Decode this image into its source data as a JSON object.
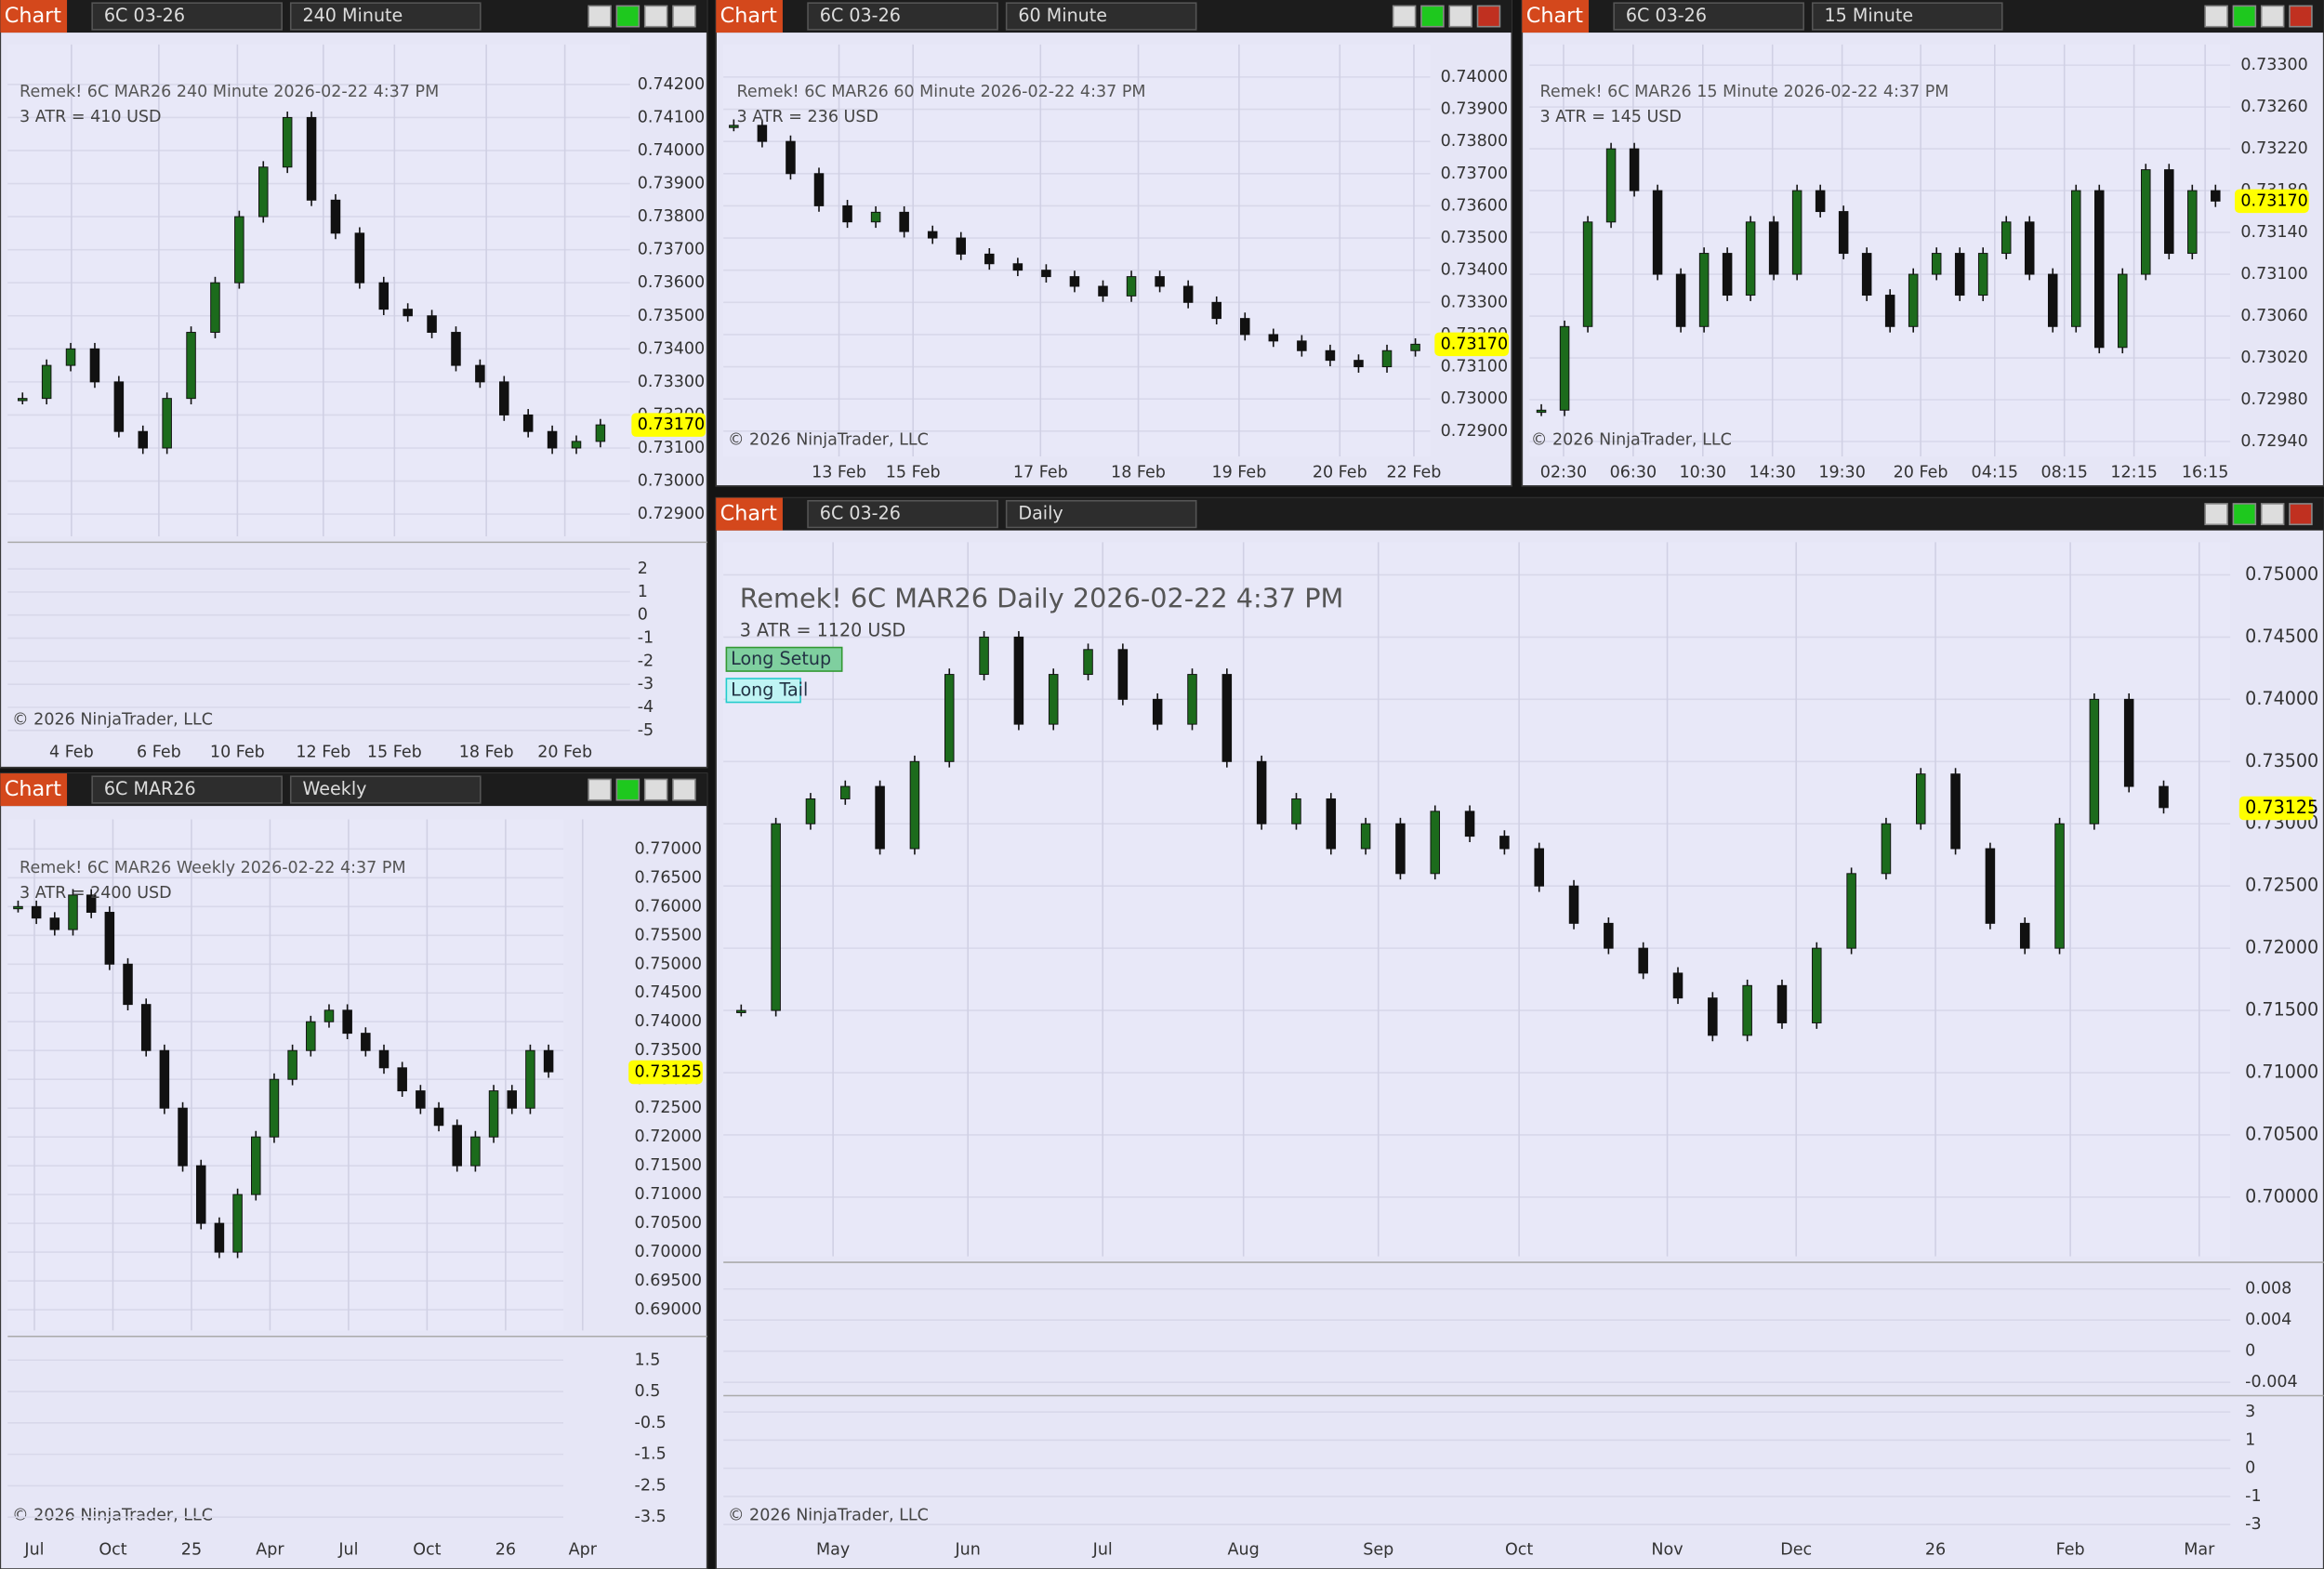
{
  "panels": [
    {
      "header": {
        "app": "Chart",
        "instrument": "6C 03-26",
        "interval": "240 Minute"
      },
      "caption": "Remek!  6C MAR26  240 Minute  2026-02-22 4:37 PM",
      "atr": "3 ATR = 410 USD",
      "copyright": "© 2026 NinjaTrader, LLC",
      "price_ticks": [
        "0.74200",
        "0.74100",
        "0.74000",
        "0.73900",
        "0.73800",
        "0.73700",
        "0.73600",
        "0.73500",
        "0.73400",
        "0.73300",
        "0.73200",
        "0.73100",
        "0.73000",
        "0.72900"
      ],
      "price_marker": "0.73170",
      "indicator_panes": [
        {
          "ticks": [
            "2",
            "1",
            "0",
            "-1",
            "-2",
            "-3",
            "-4",
            "-5"
          ]
        }
      ],
      "dates": [
        "4 Feb",
        "6 Feb",
        "10 Feb",
        "12 Feb",
        "15 Feb",
        "18 Feb",
        "20 Feb"
      ],
      "closes": [
        0.7325,
        0.7335,
        0.734,
        0.733,
        0.7315,
        0.731,
        0.7325,
        0.7345,
        0.736,
        0.738,
        0.7395,
        0.741,
        0.7385,
        0.7375,
        0.736,
        0.7352,
        0.735,
        0.7345,
        0.7335,
        0.733,
        0.732,
        0.7315,
        0.731,
        0.7312,
        0.7317
      ]
    },
    {
      "header": {
        "app": "Chart",
        "instrument": "6C 03-26",
        "interval": "60 Minute"
      },
      "caption": "Remek!  6C MAR26  60 Minute  2026-02-22 4:37 PM",
      "atr": "3 ATR = 236 USD",
      "copyright": "© 2026 NinjaTrader, LLC",
      "price_ticks": [
        "0.74000",
        "0.73900",
        "0.73800",
        "0.73700",
        "0.73600",
        "0.73500",
        "0.73400",
        "0.73300",
        "0.73200",
        "0.73100",
        "0.73000",
        "0.72900"
      ],
      "price_marker": "0.73170",
      "indicator_panes": [],
      "dates": [
        "13 Feb",
        "15 Feb",
        "17 Feb",
        "18 Feb",
        "19 Feb",
        "20 Feb",
        "22 Feb"
      ],
      "closes": [
        0.7385,
        0.738,
        0.737,
        0.736,
        0.7355,
        0.7358,
        0.7352,
        0.735,
        0.7345,
        0.7342,
        0.734,
        0.7338,
        0.7335,
        0.7332,
        0.7338,
        0.7335,
        0.733,
        0.7325,
        0.732,
        0.7318,
        0.7315,
        0.7312,
        0.731,
        0.7315,
        0.7317
      ]
    },
    {
      "header": {
        "app": "Chart",
        "instrument": "6C 03-26",
        "interval": "15 Minute"
      },
      "caption": "Remek!  6C MAR26  15 Minute  2026-02-22 4:37 PM",
      "atr": "3 ATR = 145 USD",
      "copyright": "© 2026 NinjaTrader, LLC",
      "price_ticks": [
        "0.73300",
        "0.73260",
        "0.73220",
        "0.73180",
        "0.73140",
        "0.73100",
        "0.73060",
        "0.73020",
        "0.72980",
        "0.72940"
      ],
      "price_marker": "0.73170",
      "indicator_panes": [],
      "dates": [
        "02:30",
        "06:30",
        "10:30",
        "14:30",
        "19:30",
        "20 Feb",
        "04:15",
        "08:15",
        "12:15",
        "16:15"
      ],
      "closes": [
        0.7297,
        0.7305,
        0.7315,
        0.7322,
        0.7318,
        0.731,
        0.7305,
        0.7312,
        0.7308,
        0.7315,
        0.731,
        0.7318,
        0.7316,
        0.7312,
        0.7308,
        0.7305,
        0.731,
        0.7312,
        0.7308,
        0.7312,
        0.7315,
        0.731,
        0.7305,
        0.7318,
        0.7303,
        0.731,
        0.732,
        0.7312,
        0.7318,
        0.7317
      ]
    },
    {
      "header": {
        "app": "Chart",
        "instrument": "6C MAR26",
        "interval": "Weekly"
      },
      "caption": "Remek!  6C MAR26  Weekly  2026-02-22 4:37 PM",
      "atr": "3 ATR = 2400 USD",
      "copyright": "© 2026 NinjaTrader, LLC",
      "price_ticks": [
        "0.77000",
        "0.76500",
        "0.76000",
        "0.75500",
        "0.75000",
        "0.74500",
        "0.74000",
        "0.73500",
        "0.73000",
        "0.72500",
        "0.72000",
        "0.71500",
        "0.71000",
        "0.70500",
        "0.70000",
        "0.69500",
        "0.69000"
      ],
      "price_marker": "0.73125",
      "indicator_panes": [
        {
          "ticks": [
            "1.5",
            "0.5",
            "-0.5",
            "-1.5",
            "-2.5",
            "-3.5"
          ]
        }
      ],
      "dates": [
        "Jul",
        "Oct",
        "25",
        "Apr",
        "Jul",
        "Oct",
        "26",
        "Apr"
      ],
      "closes": [
        0.76,
        0.758,
        0.756,
        0.762,
        0.759,
        0.75,
        0.743,
        0.735,
        0.725,
        0.715,
        0.705,
        0.7,
        0.71,
        0.72,
        0.73,
        0.735,
        0.74,
        0.742,
        0.738,
        0.735,
        0.732,
        0.728,
        0.725,
        0.722,
        0.715,
        0.72,
        0.728,
        0.725,
        0.735,
        0.7313
      ]
    },
    {
      "header": {
        "app": "Chart",
        "instrument": "6C 03-26",
        "interval": "Daily"
      },
      "caption": "Remek!  6C MAR26  Daily  2026-02-22 4:37 PM",
      "atr": "3 ATR = 1120 USD",
      "copyright": "© 2026 NinjaTrader, LLC",
      "labels": [
        "Long Setup",
        "Long Tail"
      ],
      "price_ticks": [
        "0.75000",
        "0.74500",
        "0.74000",
        "0.73500",
        "0.73000",
        "0.72500",
        "0.72000",
        "0.71500",
        "0.71000",
        "0.70500",
        "0.70000"
      ],
      "price_marker": "0.73125",
      "indicator_panes": [
        {
          "ticks": [
            "0.008",
            "0.004",
            "0",
            "-0.004"
          ]
        },
        {
          "ticks": [
            "3",
            "1",
            "0",
            "-1",
            "-3"
          ]
        }
      ],
      "dates": [
        "May",
        "Jun",
        "Jul",
        "Aug",
        "Sep",
        "Oct",
        "Nov",
        "Dec",
        "26",
        "Feb",
        "Mar"
      ],
      "closes": [
        0.715,
        0.73,
        0.732,
        0.733,
        0.728,
        0.735,
        0.742,
        0.745,
        0.738,
        0.742,
        0.744,
        0.74,
        0.738,
        0.742,
        0.735,
        0.73,
        0.732,
        0.728,
        0.73,
        0.726,
        0.731,
        0.729,
        0.728,
        0.725,
        0.722,
        0.72,
        0.718,
        0.716,
        0.713,
        0.717,
        0.714,
        0.72,
        0.726,
        0.73,
        0.734,
        0.728,
        0.722,
        0.72,
        0.73,
        0.74,
        0.733,
        0.7313
      ]
    }
  ]
}
